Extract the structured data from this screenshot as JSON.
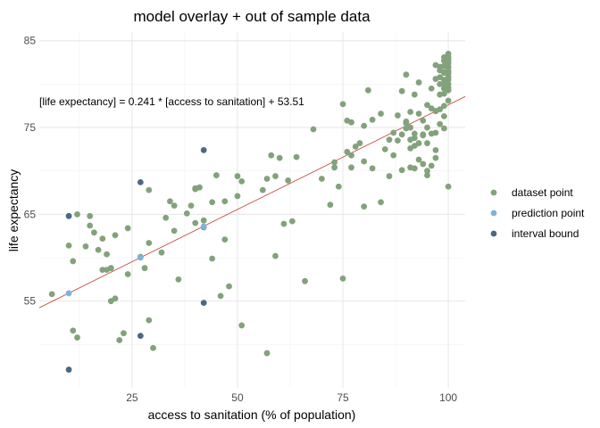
{
  "chart_data": {
    "type": "scatter",
    "title": "model overlay + out of sample data",
    "xlabel": "access to sanitation (% of population)",
    "ylabel": "life expectancy",
    "xlim": [
      3,
      104
    ],
    "ylim": [
      45,
      86
    ],
    "x_ticks": [
      25,
      50,
      75,
      100
    ],
    "y_ticks": [
      55,
      65,
      75,
      85
    ],
    "grid": true,
    "legend_position": "right",
    "annotation": "[life expectancy] = 0.241 * [access to sanitation] + 53.51",
    "regression": {
      "slope": 0.241,
      "intercept": 53.51,
      "color": "#c0392b"
    },
    "series": [
      {
        "name": "dataset point",
        "color": "#83a27c",
        "points": [
          [
            6,
            55.8
          ],
          [
            10,
            61.4
          ],
          [
            11,
            59.6
          ],
          [
            11,
            51.6
          ],
          [
            12,
            50.8
          ],
          [
            12,
            65.0
          ],
          [
            14,
            61.3
          ],
          [
            15,
            64.8
          ],
          [
            15,
            63.7
          ],
          [
            16,
            62.9
          ],
          [
            17,
            60.9
          ],
          [
            18,
            62.2
          ],
          [
            18,
            58.6
          ],
          [
            19,
            60.4
          ],
          [
            19,
            58.6
          ],
          [
            20,
            58.8
          ],
          [
            20,
            58.8
          ],
          [
            20,
            55.0
          ],
          [
            21,
            55.3
          ],
          [
            21,
            62.6
          ],
          [
            22,
            50.5
          ],
          [
            23,
            51.3
          ],
          [
            24,
            63.4
          ],
          [
            24,
            58.1
          ],
          [
            27,
            60.1
          ],
          [
            28,
            58.8
          ],
          [
            29,
            52.8
          ],
          [
            29,
            67.8
          ],
          [
            29,
            61.7
          ],
          [
            30,
            49.6
          ],
          [
            32,
            60.6
          ],
          [
            33,
            64.6
          ],
          [
            34,
            66.5
          ],
          [
            35,
            63.1
          ],
          [
            35,
            66.0
          ],
          [
            36,
            57.5
          ],
          [
            38,
            65.1
          ],
          [
            39,
            66.0
          ],
          [
            40,
            67.9
          ],
          [
            40,
            64.0
          ],
          [
            40,
            68.0
          ],
          [
            41,
            68.1
          ],
          [
            42,
            63.5
          ],
          [
            42,
            64.3
          ],
          [
            44,
            59.9
          ],
          [
            44,
            66.4
          ],
          [
            45,
            69.5
          ],
          [
            46,
            55.6
          ],
          [
            47,
            66.5
          ],
          [
            47,
            62.1
          ],
          [
            48,
            56.7
          ],
          [
            50,
            69.4
          ],
          [
            50,
            67.1
          ],
          [
            51,
            52.2
          ],
          [
            51,
            68.8
          ],
          [
            56,
            67.8
          ],
          [
            57,
            69.1
          ],
          [
            57,
            49.0
          ],
          [
            58,
            71.8
          ],
          [
            59,
            69.4
          ],
          [
            59,
            60.2
          ],
          [
            60,
            71.5
          ],
          [
            61,
            63.9
          ],
          [
            62,
            68.9
          ],
          [
            63,
            64.2
          ],
          [
            64,
            71.6
          ],
          [
            66,
            57.3
          ],
          [
            68,
            74.8
          ],
          [
            70,
            69.1
          ],
          [
            72,
            66.1
          ],
          [
            73,
            71.0
          ],
          [
            73,
            70.4
          ],
          [
            74,
            68.2
          ],
          [
            75,
            77.7
          ],
          [
            75,
            57.6
          ],
          [
            76,
            72.2
          ],
          [
            76,
            75.8
          ],
          [
            77,
            71.8
          ],
          [
            77,
            70.4
          ],
          [
            77,
            75.6
          ],
          [
            78,
            72.8
          ],
          [
            79,
            73.2
          ],
          [
            80,
            71.1
          ],
          [
            80,
            75.2
          ],
          [
            80,
            65.9
          ],
          [
            81,
            79.3
          ],
          [
            82,
            70.3
          ],
          [
            82,
            75.9
          ],
          [
            84,
            66.4
          ],
          [
            84,
            76.6
          ],
          [
            85,
            72.5
          ],
          [
            86,
            69.4
          ],
          [
            86,
            73.6
          ],
          [
            87,
            74.4
          ],
          [
            87,
            71.8
          ],
          [
            88,
            76.4
          ],
          [
            88,
            73.5
          ],
          [
            89,
            79.2
          ],
          [
            89,
            74.2
          ],
          [
            89,
            70.1
          ],
          [
            90,
            75.7
          ],
          [
            90,
            75.5
          ],
          [
            90,
            81.1
          ],
          [
            90,
            74.9
          ],
          [
            91,
            70.4
          ],
          [
            91,
            75.0
          ],
          [
            91,
            72.6
          ],
          [
            91,
            76.8
          ],
          [
            91,
            73.6
          ],
          [
            92,
            78.8
          ],
          [
            92,
            74.3
          ],
          [
            92,
            70.3
          ],
          [
            92,
            72.9
          ],
          [
            92,
            73.8
          ],
          [
            93,
            73.2
          ],
          [
            93,
            76.6
          ],
          [
            93,
            80.2
          ],
          [
            93,
            71.3
          ],
          [
            94,
            70.8
          ],
          [
            94,
            74.1
          ],
          [
            94,
            75.8
          ],
          [
            94,
            74.2
          ],
          [
            95,
            69.5
          ],
          [
            95,
            73.2
          ],
          [
            95,
            77.6
          ],
          [
            95,
            70.0
          ],
          [
            95,
            75.0
          ],
          [
            96,
            74.3
          ],
          [
            96,
            77.2
          ],
          [
            96,
            79.5
          ],
          [
            96,
            70.6
          ],
          [
            97,
            72.4
          ],
          [
            97,
            76.9
          ],
          [
            97,
            82.2
          ],
          [
            97,
            74.4
          ],
          [
            97,
            71.5
          ],
          [
            97,
            80.6
          ],
          [
            97,
            76.9
          ],
          [
            98,
            82.0
          ],
          [
            98,
            80.0
          ],
          [
            98,
            78.8
          ],
          [
            98,
            75.4
          ],
          [
            98,
            81.6
          ],
          [
            98,
            80.8
          ],
          [
            98,
            77.1
          ],
          [
            99,
            82.7
          ],
          [
            99,
            81.4
          ],
          [
            99,
            79.5
          ],
          [
            99,
            81.3
          ],
          [
            99,
            78.9
          ],
          [
            99,
            77.5
          ],
          [
            99,
            80.5
          ],
          [
            99,
            82.1
          ],
          [
            99,
            74.9
          ],
          [
            99,
            80.0
          ],
          [
            99,
            83.1
          ],
          [
            99,
            76.3
          ],
          [
            100,
            82.5
          ],
          [
            100,
            81.4
          ],
          [
            100,
            78.1
          ],
          [
            100,
            80.0
          ],
          [
            100,
            81.5
          ],
          [
            100,
            83.5
          ],
          [
            100,
            82.0
          ],
          [
            100,
            80.8
          ],
          [
            100,
            79.3
          ],
          [
            100,
            82.8
          ],
          [
            100,
            68.2
          ],
          [
            100,
            81.2
          ],
          [
            100,
            81.9
          ],
          [
            100,
            80.5
          ],
          [
            100,
            79.6
          ],
          [
            100,
            82.4
          ],
          [
            100,
            83.1
          ]
        ]
      },
      {
        "name": "prediction point",
        "color": "#7fb2dd",
        "points": [
          [
            10,
            55.9
          ],
          [
            27,
            60.0
          ],
          [
            42,
            63.6
          ]
        ]
      },
      {
        "name": "interval bound",
        "color": "#4c6882",
        "points": [
          [
            10,
            64.8
          ],
          [
            10,
            47.1
          ],
          [
            27,
            68.7
          ],
          [
            27,
            51.0
          ],
          [
            42,
            72.4
          ],
          [
            42,
            54.8
          ]
        ]
      }
    ]
  }
}
